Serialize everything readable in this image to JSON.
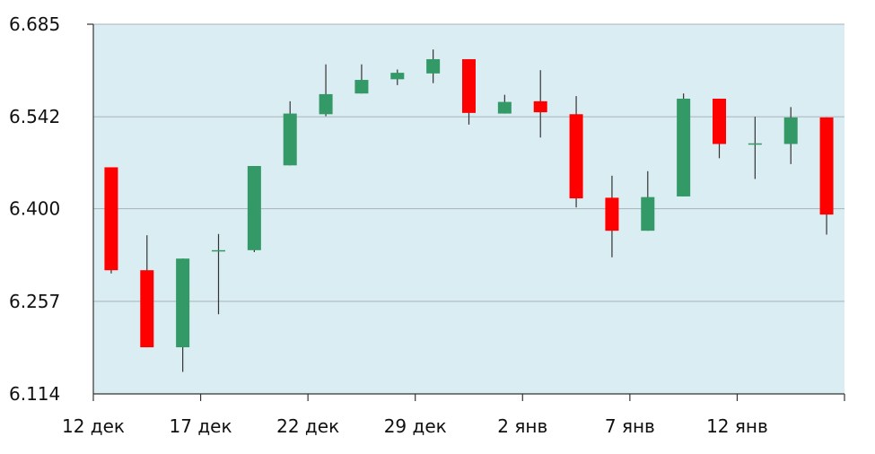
{
  "chart_data": {
    "type": "candlestick",
    "title": "",
    "xlabel": "",
    "ylabel": "",
    "ylim": [
      6.114,
      6.685
    ],
    "y_ticks": [
      "6.114",
      "6.257",
      "6.400",
      "6.542",
      "6.685"
    ],
    "x_ticks": [
      "12 дек",
      "17 дек",
      "22 дек",
      "29 дек",
      "2 янв",
      "7 янв",
      "12 янв"
    ],
    "grid": true,
    "colors": {
      "up": "#339966",
      "down": "#ff0000",
      "plot_bg": "#daedf2",
      "grid": "#a9b3b8"
    },
    "candles": [
      {
        "open": 6.464,
        "close": 6.305,
        "high": 6.464,
        "low": 6.3
      },
      {
        "open": 6.305,
        "close": 6.186,
        "high": 6.359,
        "low": 6.186
      },
      {
        "open": 6.186,
        "close": 6.323,
        "high": 6.323,
        "low": 6.148
      },
      {
        "open": 6.334,
        "close": 6.336,
        "high": 6.361,
        "low": 6.237
      },
      {
        "open": 6.336,
        "close": 6.466,
        "high": 6.466,
        "low": 6.333
      },
      {
        "open": 6.467,
        "close": 6.547,
        "high": 6.566,
        "low": 6.467
      },
      {
        "open": 6.546,
        "close": 6.577,
        "high": 6.623,
        "low": 6.543
      },
      {
        "open": 6.578,
        "close": 6.599,
        "high": 6.623,
        "low": 6.578
      },
      {
        "open": 6.6,
        "close": 6.61,
        "high": 6.615,
        "low": 6.591
      },
      {
        "open": 6.609,
        "close": 6.631,
        "high": 6.646,
        "low": 6.594
      },
      {
        "open": 6.631,
        "close": 6.548,
        "high": 6.631,
        "low": 6.53
      },
      {
        "open": 6.547,
        "close": 6.565,
        "high": 6.576,
        "low": 6.547
      },
      {
        "open": 6.566,
        "close": 6.549,
        "high": 6.614,
        "low": 6.51
      },
      {
        "open": 6.546,
        "close": 6.416,
        "high": 6.574,
        "low": 6.402
      },
      {
        "open": 6.417,
        "close": 6.366,
        "high": 6.451,
        "low": 6.325
      },
      {
        "open": 6.366,
        "close": 6.418,
        "high": 6.458,
        "low": 6.366
      },
      {
        "open": 6.419,
        "close": 6.57,
        "high": 6.578,
        "low": 6.419
      },
      {
        "open": 6.57,
        "close": 6.5,
        "high": 6.57,
        "low": 6.478
      },
      {
        "open": 6.5,
        "close": 6.501,
        "high": 6.542,
        "low": 6.446
      },
      {
        "open": 6.5,
        "close": 6.541,
        "high": 6.557,
        "low": 6.469
      },
      {
        "open": 6.541,
        "close": 6.391,
        "high": 6.541,
        "low": 6.36
      }
    ]
  }
}
